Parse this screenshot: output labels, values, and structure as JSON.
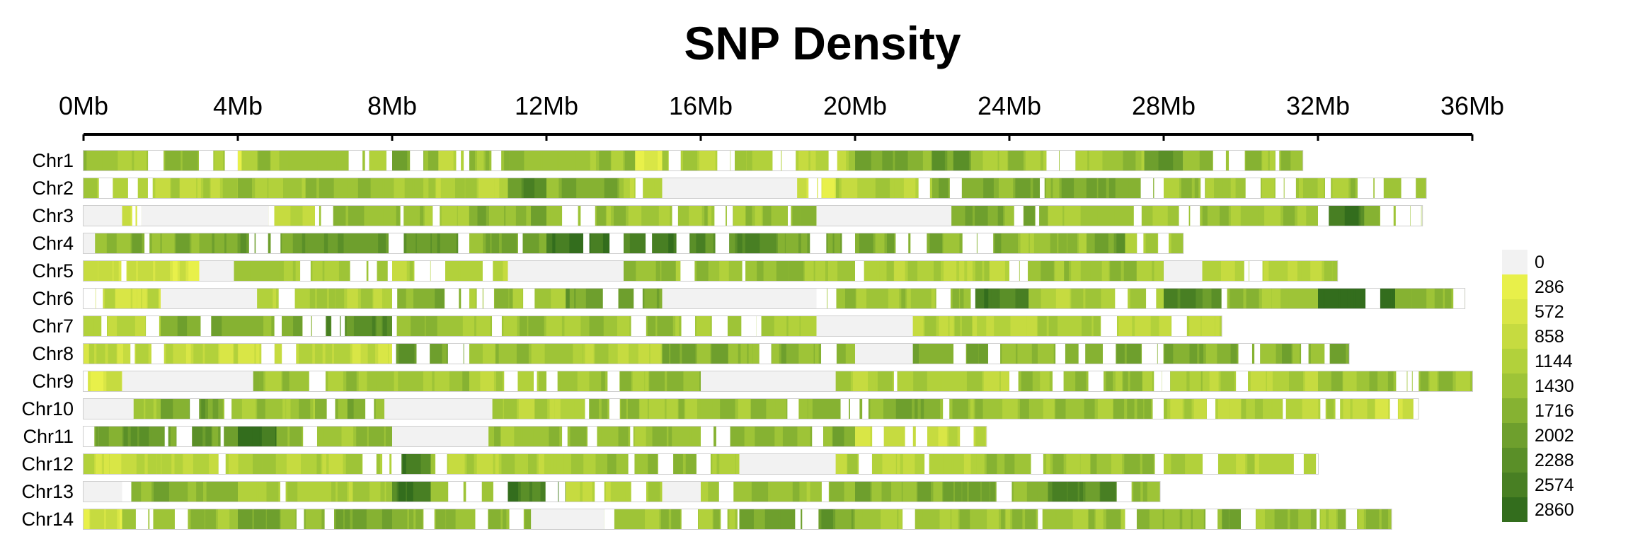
{
  "chart_data": {
    "type": "heatmap",
    "title": "SNP Density",
    "x_ticks": [
      "0Mb",
      "4Mb",
      "8Mb",
      "12Mb",
      "16Mb",
      "20Mb",
      "24Mb",
      "28Mb",
      "32Mb",
      "36Mb"
    ],
    "x_range_mb": [
      0,
      36
    ],
    "legend": {
      "placement": "right",
      "labels": [
        "0",
        "286",
        "572",
        "858",
        "1144",
        "1430",
        "1716",
        "2002",
        "2288",
        "2574",
        "2860"
      ],
      "colors": [
        "#f2f2f2",
        "#e8f04a",
        "#d9e646",
        "#c6db40",
        "#b2d13b",
        "#9ec437",
        "#86b232",
        "#6e9f2d",
        "#5a8f28",
        "#487f23",
        "#336d1d"
      ]
    },
    "chromosomes": [
      {
        "name": "Chr1",
        "length_mb": 31.6,
        "segments": [
          [
            0,
            4,
            5
          ],
          [
            4,
            4.1,
            1
          ],
          [
            4.1,
            8,
            5
          ],
          [
            8,
            9.2,
            6
          ],
          [
            9.2,
            10,
            4
          ],
          [
            10,
            14.3,
            5
          ],
          [
            14.3,
            15,
            2
          ],
          [
            15,
            20,
            4
          ],
          [
            20,
            22,
            6
          ],
          [
            22,
            23,
            7
          ],
          [
            23,
            27.5,
            5
          ],
          [
            27.5,
            28.5,
            8
          ],
          [
            28.5,
            31.6,
            5
          ]
        ]
      },
      {
        "name": "Chr2",
        "length_mb": 34.8,
        "segments": [
          [
            0,
            4,
            4
          ],
          [
            4,
            9,
            5
          ],
          [
            9,
            11,
            4
          ],
          [
            11,
            12,
            8
          ],
          [
            12,
            14,
            6
          ],
          [
            14,
            15,
            4
          ],
          [
            15,
            18.5,
            0
          ],
          [
            18.5,
            19.5,
            2
          ],
          [
            19.5,
            22,
            4
          ],
          [
            22,
            28,
            6
          ],
          [
            28,
            34.8,
            5
          ]
        ]
      },
      {
        "name": "Chr3",
        "length_mb": 34.7,
        "segments": [
          [
            0,
            1,
            0
          ],
          [
            1,
            1.5,
            2
          ],
          [
            1.5,
            4.8,
            0
          ],
          [
            4.8,
            6,
            3
          ],
          [
            6,
            10,
            5
          ],
          [
            10,
            12,
            6
          ],
          [
            12,
            19,
            5
          ],
          [
            19,
            22.5,
            0
          ],
          [
            22.5,
            25,
            6
          ],
          [
            25,
            32,
            5
          ],
          [
            32,
            33.2,
            9
          ],
          [
            33.2,
            34.7,
            5
          ]
        ]
      },
      {
        "name": "Chr4",
        "length_mb": 28.5,
        "segments": [
          [
            0,
            0.3,
            0
          ],
          [
            0.3,
            3,
            6
          ],
          [
            3,
            8,
            7
          ],
          [
            8,
            10,
            8
          ],
          [
            10,
            12,
            6
          ],
          [
            12,
            14,
            10
          ],
          [
            14,
            16,
            9
          ],
          [
            16,
            18,
            8
          ],
          [
            18,
            20,
            7
          ],
          [
            20,
            24,
            6
          ],
          [
            24,
            26,
            5
          ],
          [
            26,
            27,
            7
          ],
          [
            27,
            28.5,
            4
          ]
        ]
      },
      {
        "name": "Chr5",
        "length_mb": 32.5,
        "segments": [
          [
            0,
            3,
            2
          ],
          [
            3,
            3.9,
            0
          ],
          [
            3.9,
            8,
            5
          ],
          [
            8,
            11,
            4
          ],
          [
            11,
            14,
            0
          ],
          [
            14,
            20,
            5
          ],
          [
            20,
            24,
            4
          ],
          [
            24,
            28,
            5
          ],
          [
            28,
            29,
            0
          ],
          [
            29,
            32.5,
            4
          ]
        ]
      },
      {
        "name": "Chr6",
        "length_mb": 35.8,
        "segments": [
          [
            0,
            2,
            3
          ],
          [
            2,
            4.5,
            0
          ],
          [
            4.5,
            8,
            4
          ],
          [
            8,
            10,
            6
          ],
          [
            10,
            12.5,
            5
          ],
          [
            12.5,
            15,
            7
          ],
          [
            15,
            19,
            0
          ],
          [
            19,
            23,
            5
          ],
          [
            23,
            24.5,
            9
          ],
          [
            24.5,
            28,
            4
          ],
          [
            28,
            29.5,
            8
          ],
          [
            29.5,
            32,
            5
          ],
          [
            32,
            34,
            10
          ],
          [
            34,
            35.8,
            5
          ]
        ]
      },
      {
        "name": "Chr7",
        "length_mb": 29.5,
        "segments": [
          [
            0,
            2,
            4
          ],
          [
            2,
            6,
            6
          ],
          [
            6,
            8,
            8
          ],
          [
            8,
            12,
            5
          ],
          [
            12,
            19,
            5
          ],
          [
            19,
            21.5,
            0
          ],
          [
            21.5,
            29.5,
            4
          ]
        ]
      },
      {
        "name": "Chr8",
        "length_mb": 32.8,
        "segments": [
          [
            0,
            8,
            3
          ],
          [
            8,
            10,
            7
          ],
          [
            10,
            13,
            5
          ],
          [
            13,
            15,
            4
          ],
          [
            15,
            20,
            6
          ],
          [
            20,
            21.5,
            0
          ],
          [
            21.5,
            32.8,
            6
          ]
        ]
      },
      {
        "name": "Chr9",
        "length_mb": 36.0,
        "segments": [
          [
            0,
            1,
            2
          ],
          [
            1,
            4.4,
            0
          ],
          [
            4.4,
            10,
            5
          ],
          [
            10,
            12,
            4
          ],
          [
            12,
            16,
            5
          ],
          [
            16,
            19.5,
            0
          ],
          [
            19.5,
            24,
            4
          ],
          [
            24,
            29,
            5
          ],
          [
            29,
            32,
            4
          ],
          [
            32,
            36,
            5
          ]
        ]
      },
      {
        "name": "Chr10",
        "length_mb": 34.6,
        "segments": [
          [
            0,
            1.3,
            0
          ],
          [
            1.3,
            2,
            4
          ],
          [
            2,
            3.5,
            7
          ],
          [
            3.5,
            6,
            5
          ],
          [
            6,
            7.8,
            6
          ],
          [
            7.8,
            10.6,
            0
          ],
          [
            10.6,
            13,
            4
          ],
          [
            13,
            18,
            5
          ],
          [
            18,
            22,
            6
          ],
          [
            22,
            28,
            5
          ],
          [
            28,
            33,
            4
          ],
          [
            33,
            34.6,
            3
          ]
        ]
      },
      {
        "name": "Chr11",
        "length_mb": 23.4,
        "segments": [
          [
            0,
            0.4,
            6
          ],
          [
            0.4,
            4,
            7
          ],
          [
            4,
            5,
            10
          ],
          [
            5,
            8,
            5
          ],
          [
            8,
            10.5,
            0
          ],
          [
            10.5,
            16,
            5
          ],
          [
            16,
            20,
            6
          ],
          [
            20,
            23.4,
            3
          ]
        ]
      },
      {
        "name": "Chr12",
        "length_mb": 32.0,
        "segments": [
          [
            0,
            3.5,
            3
          ],
          [
            3.5,
            8,
            4
          ],
          [
            8,
            9,
            9
          ],
          [
            9,
            13,
            4
          ],
          [
            13,
            17,
            5
          ],
          [
            17,
            19.5,
            0
          ],
          [
            19.5,
            23,
            4
          ],
          [
            23,
            28,
            5
          ],
          [
            28,
            32,
            4
          ]
        ]
      },
      {
        "name": "Chr13",
        "length_mb": 27.9,
        "segments": [
          [
            0,
            1,
            0
          ],
          [
            1,
            4,
            6
          ],
          [
            4,
            8,
            4
          ],
          [
            8,
            9,
            9
          ],
          [
            9,
            11,
            5
          ],
          [
            11,
            12.5,
            9
          ],
          [
            12.5,
            15,
            4
          ],
          [
            15,
            16,
            0
          ],
          [
            16,
            20,
            5
          ],
          [
            20,
            25,
            6
          ],
          [
            25,
            27,
            8
          ],
          [
            27,
            27.9,
            5
          ]
        ]
      },
      {
        "name": "Chr14",
        "length_mb": 33.9,
        "segments": [
          [
            0,
            1,
            2
          ],
          [
            1,
            4,
            5
          ],
          [
            4,
            8,
            6
          ],
          [
            8,
            11.6,
            5
          ],
          [
            11.6,
            13.5,
            0
          ],
          [
            13.5,
            17,
            5
          ],
          [
            17,
            20,
            7
          ],
          [
            20,
            27,
            5
          ],
          [
            27,
            30,
            6
          ],
          [
            30,
            33.9,
            5
          ]
        ]
      }
    ]
  }
}
